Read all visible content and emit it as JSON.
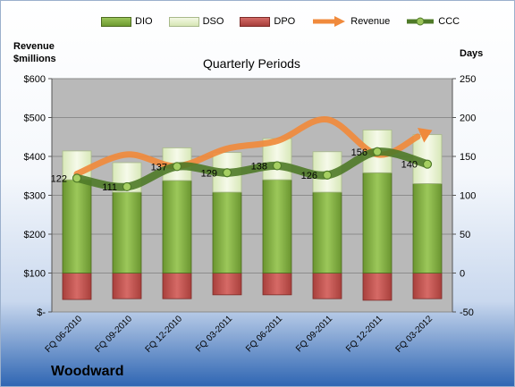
{
  "company": "Woodward",
  "legend": {
    "dio": "DIO",
    "dso": "DSO",
    "dpo": "DPO",
    "revenue": "Revenue",
    "ccc": "CCC"
  },
  "colors": {
    "dio": "#7aa33a",
    "dso": "#e4efc8",
    "dpo": "#c0504d",
    "revenue": "#f08a3c",
    "ccc": "#4f7a28",
    "plot_bg": "#b9b9b9"
  },
  "chart_data": {
    "type": "bar",
    "title": "Quarterly Periods",
    "ylabel_left": "Revenue $millions",
    "ylabel_right": "Days",
    "left_axis": {
      "range": [
        0,
        600
      ],
      "ticks": [
        "$-",
        "$100",
        "$200",
        "$300",
        "$400",
        "$500",
        "$600"
      ]
    },
    "right_axis": {
      "range": [
        -50,
        250
      ],
      "ticks": [
        "-50",
        "0",
        "50",
        "100",
        "150",
        "200",
        "250"
      ]
    },
    "categories": [
      "FQ 06-2010",
      "FQ 09-2010",
      "FQ 12-2010",
      "FQ 03-2011",
      "FQ 06-2011",
      "FQ 09-2011",
      "FQ 12-2011",
      "FQ 03-2012"
    ],
    "series": [
      {
        "name": "DIO",
        "axis": "right",
        "type": "stacked-bar",
        "values": [
          120,
          104,
          119,
          104,
          120,
          104,
          129,
          115
        ]
      },
      {
        "name": "DSO",
        "axis": "right",
        "type": "stacked-bar",
        "values": [
          37,
          38,
          42,
          51,
          53,
          52,
          55,
          63
        ]
      },
      {
        "name": "DPO",
        "axis": "right",
        "type": "negative-bar",
        "values": [
          -34,
          -33,
          -33,
          -28,
          -28,
          -33,
          -35,
          -33
        ]
      },
      {
        "name": "Revenue",
        "axis": "left",
        "type": "line",
        "values": [
          355,
          405,
          375,
          420,
          440,
          495,
          405,
          462
        ]
      },
      {
        "name": "CCC",
        "axis": "right",
        "type": "line",
        "values": [
          122,
          111,
          137,
          129,
          138,
          126,
          156,
          140
        ]
      }
    ],
    "data_labels": [
      "122",
      "111",
      "137",
      "129",
      "138",
      "126",
      "156",
      "140"
    ]
  }
}
